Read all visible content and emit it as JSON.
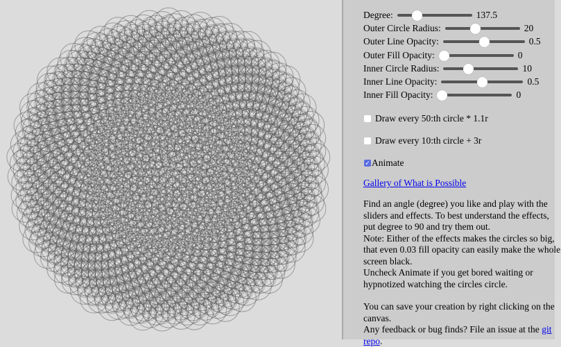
{
  "sliders": [
    {
      "label": "Degree:",
      "value": "137.5",
      "fraction": 0.26
    },
    {
      "label": "Outer Circle Radius:",
      "value": "20",
      "fraction": 0.4
    },
    {
      "label": "Outer Line Opacity:",
      "value": "0.5",
      "fraction": 0.5
    },
    {
      "label": "Outer Fill Opacity:",
      "value": "0",
      "fraction": 0.0
    },
    {
      "label": "Inner Circle Radius:",
      "value": "10",
      "fraction": 0.33
    },
    {
      "label": "Inner Line Opacity:",
      "value": "0.5",
      "fraction": 0.5
    },
    {
      "label": "Inner Fill Opacity:",
      "value": "0",
      "fraction": 0.0
    }
  ],
  "checkboxes": [
    {
      "label": "Draw every 50:th circle * 1.1r",
      "checked": false
    },
    {
      "label": "Draw every 10:th circle + 3r",
      "checked": false
    },
    {
      "label": "Animate",
      "checked": true
    }
  ],
  "gallery_link": "Gallery of What is Possible",
  "help_text": "Find an angle (degree) you like and play with the sliders and effects. To best understand the effects, put degree to 90 and try them out.",
  "note_text": "Note: Either of the effects makes the circles so big, that even 0.03 fill opacity can easily make the whole screen black.",
  "uncheck_text": "Uncheck Animate if you get bored waiting or hypnotized watching the circles circle.",
  "save_text": "You can save your creation by right clicking on the canvas.",
  "feedback_text": "Any feedback or bug finds? File an issue at the ",
  "repo_link": "git repo",
  "repo_suffix": "."
}
